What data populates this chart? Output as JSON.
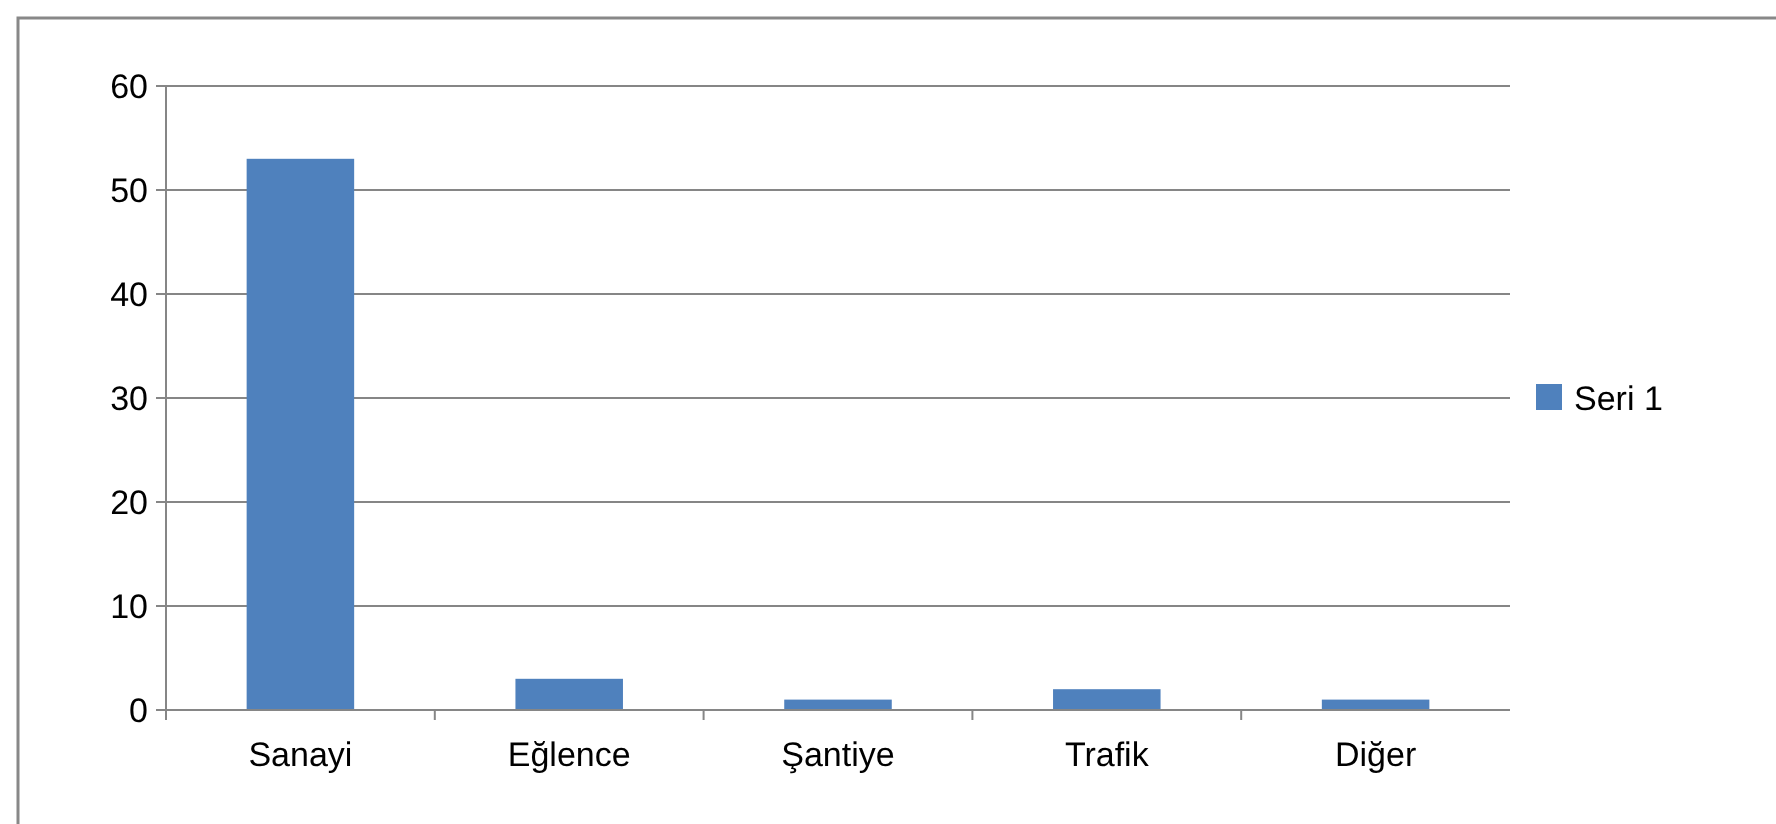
{
  "chart_data": {
    "type": "bar",
    "categories": [
      "Sanayi",
      "Eğlence",
      "Şantiye",
      "Trafik",
      "Diğer"
    ],
    "series": [
      {
        "name": "Seri 1",
        "color": "#4f81bd",
        "values": [
          53,
          3,
          1,
          2,
          1
        ]
      }
    ],
    "ylim": [
      0,
      60
    ],
    "yticks": [
      0,
      10,
      20,
      30,
      40,
      50,
      60
    ],
    "grid": "y",
    "legend": "right"
  }
}
